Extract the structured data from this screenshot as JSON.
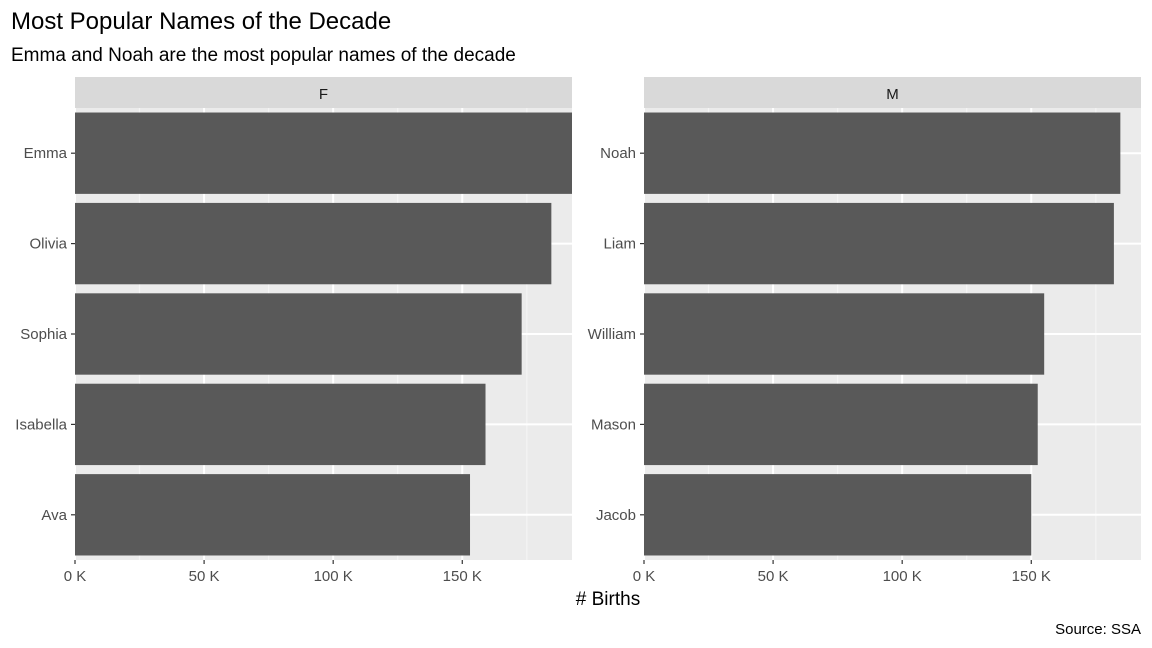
{
  "title": "Most Popular Names of the Decade",
  "subtitle": "Emma and Noah are the most popular names of the decade",
  "caption": "Source: SSA",
  "colors": {
    "bar": "#595959",
    "panel_background": "#ebebeb",
    "strip_background": "#d9d9d9",
    "grid_major": "#ffffff",
    "grid_minor": "#f5f5f5",
    "tick": "#333333"
  },
  "chart_data": {
    "type": "bar",
    "orientation": "horizontal",
    "facet_by": "sex",
    "xlabel": "# Births",
    "ylabel": "",
    "xlim": [
      0,
      192500
    ],
    "x_ticks": [
      0,
      50000,
      100000,
      150000
    ],
    "x_tick_labels": [
      "0 K",
      "50 K",
      "100 K",
      "150 K"
    ],
    "grid": true,
    "panels": [
      {
        "label": "F",
        "categories": [
          "Emma",
          "Olivia",
          "Sophia",
          "Isabella",
          "Ava"
        ],
        "values": [
          192500,
          184500,
          173000,
          159000,
          153000
        ]
      },
      {
        "label": "M",
        "categories": [
          "Noah",
          "Liam",
          "William",
          "Mason",
          "Jacob"
        ],
        "values": [
          184500,
          182000,
          155000,
          152500,
          150000
        ]
      }
    ]
  }
}
